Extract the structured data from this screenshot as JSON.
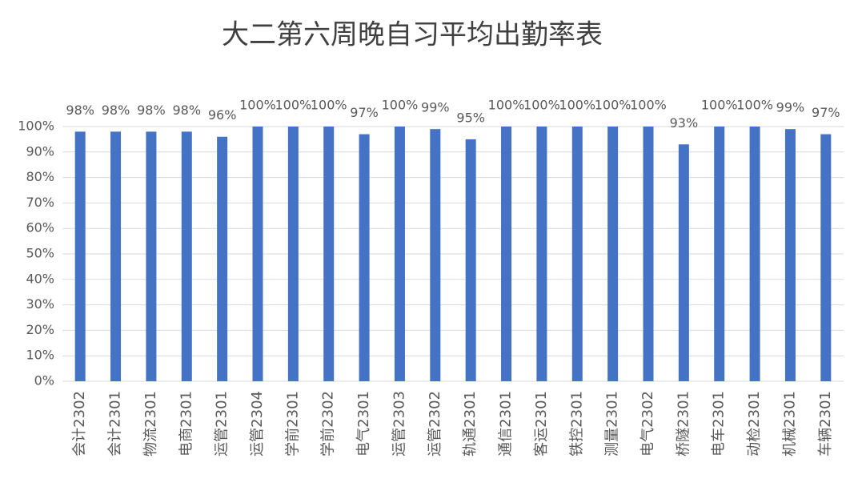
{
  "chart_data": {
    "type": "bar",
    "title": "大二第六周晚自习平均出勤率表",
    "categories": [
      "会计2302",
      "会计2301",
      "物流2301",
      "电商2301",
      "运管2301",
      "运管2304",
      "学前2301",
      "学前2302",
      "电气2301",
      "运管2303",
      "运管2302",
      "轨通2301",
      "通信2301",
      "客运2301",
      "铁控2301",
      "测量2301",
      "电气2302",
      "桥隧2301",
      "电车2301",
      "动检2301",
      "机械2301",
      "车辆2301"
    ],
    "values": [
      98,
      98,
      98,
      98,
      96,
      100,
      100,
      100,
      97,
      100,
      99,
      95,
      100,
      100,
      100,
      100,
      100,
      93,
      100,
      100,
      99,
      97
    ],
    "value_labels": [
      "98%",
      "98%",
      "98%",
      "98%",
      "96%",
      "100%",
      "100%",
      "100%",
      "97%",
      "100%",
      "99%",
      "95%",
      "100%",
      "100%",
      "100%",
      "100%",
      "100%",
      "93%",
      "100%",
      "100%",
      "99%",
      "97%"
    ],
    "color": "#4472c4",
    "ylim": [
      0,
      100
    ],
    "yticks": [
      {
        "value": 0,
        "label": "0%"
      },
      {
        "value": 10,
        "label": "10%"
      },
      {
        "value": 20,
        "label": "20%"
      },
      {
        "value": 30,
        "label": "30%"
      },
      {
        "value": 40,
        "label": "40%"
      },
      {
        "value": 50,
        "label": "50%"
      },
      {
        "value": 60,
        "label": "60%"
      },
      {
        "value": 70,
        "label": "70%"
      },
      {
        "value": 80,
        "label": "80%"
      },
      {
        "value": 90,
        "label": "90%"
      },
      {
        "value": 100,
        "label": "100%"
      }
    ],
    "grid": true
  }
}
